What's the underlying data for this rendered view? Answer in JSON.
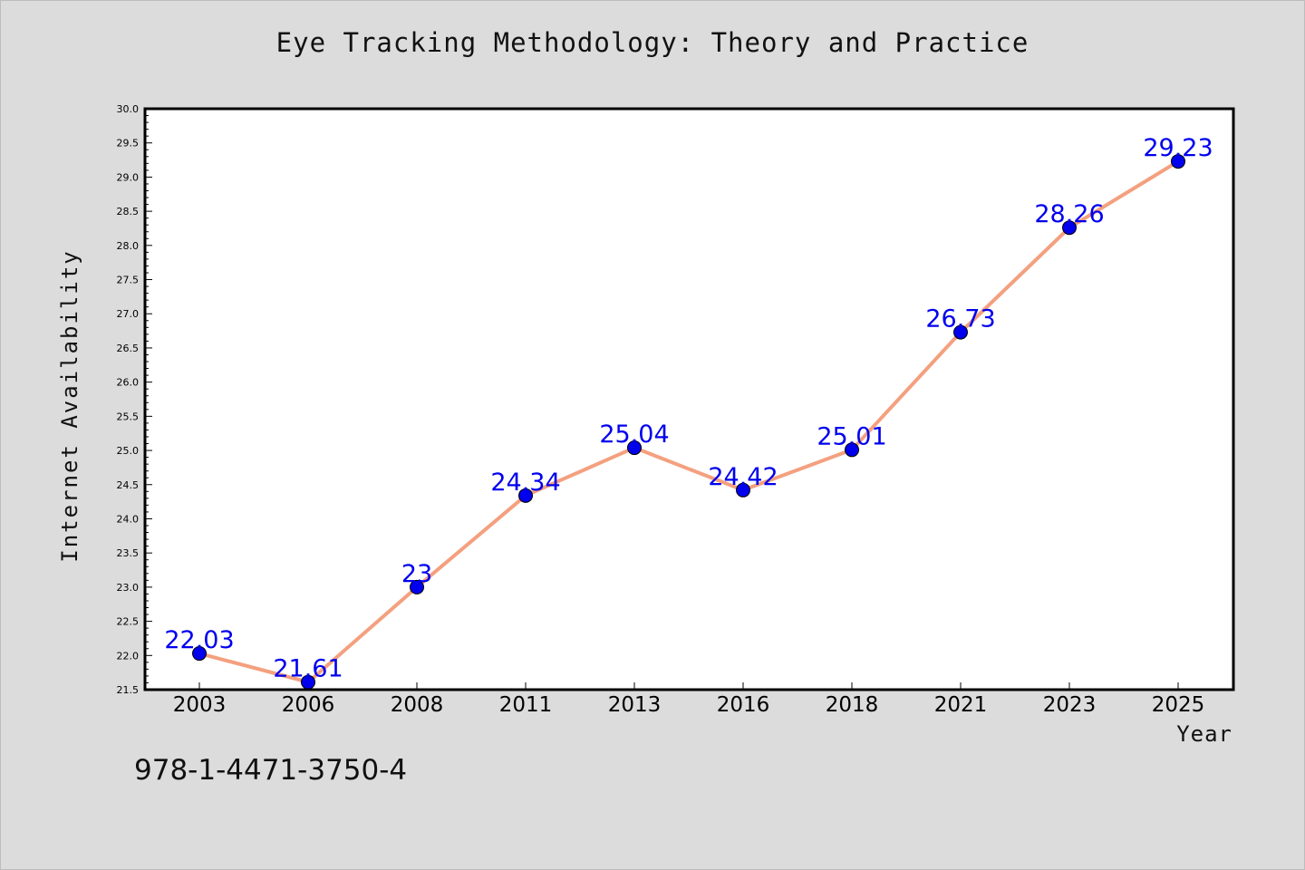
{
  "chart_data": {
    "type": "line",
    "title": "Eye Tracking Methodology: Theory and Practice",
    "xlabel": "Year",
    "ylabel": "Internet Availability",
    "categories": [
      "2003",
      "2006",
      "2008",
      "2011",
      "2013",
      "2016",
      "2018",
      "2021",
      "2023",
      "2025"
    ],
    "series": [
      {
        "values": [
          22.03,
          21.61,
          23,
          24.34,
          25.04,
          24.42,
          25.01,
          26.73,
          28.26,
          29.23
        ],
        "line_color": "#f4a07f",
        "marker_color": "#0000ee"
      }
    ],
    "data_labels": [
      "22.03",
      "21.61",
      "23",
      "24.34",
      "25.04",
      "24.42",
      "25.01",
      "26.73",
      "28.26",
      "29.23"
    ],
    "ylim": [
      21.5,
      30.0
    ],
    "yticks": [
      "21.5",
      "22.0",
      "22.5",
      "23.0",
      "23.5",
      "24.0",
      "24.5",
      "25.0",
      "25.5",
      "26.0",
      "26.5",
      "27.0",
      "27.5",
      "28.0",
      "28.5",
      "29.0",
      "29.5",
      "30.0"
    ],
    "grid": false,
    "label_color": "#0000ee"
  },
  "footnote": "978-1-4471-3750-4"
}
